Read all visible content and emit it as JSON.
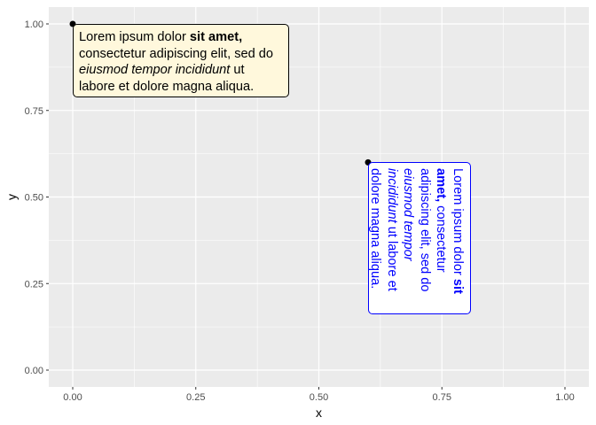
{
  "chart_data": {
    "type": "scatter",
    "xlabel": "x",
    "ylabel": "y",
    "xlim": [
      -0.05,
      1.05
    ],
    "ylim": [
      -0.05,
      1.05
    ],
    "x_ticks": [
      "0.00",
      "0.25",
      "0.50",
      "0.75",
      "1.00"
    ],
    "y_ticks": [
      "0.00",
      "0.25",
      "0.50",
      "0.75",
      "1.00"
    ],
    "grid": true,
    "points": [
      {
        "x": 0,
        "y": 1,
        "label_color": "#000000",
        "box_fill": "#FFF8DC",
        "box_border": "#000000",
        "rotation": 0
      },
      {
        "x": 0.6,
        "y": 0.6,
        "label_color": "#0000FF",
        "box_fill": "#FFFFFF",
        "box_border": "#0000FF",
        "rotation": -90
      }
    ],
    "label_runs": [
      {
        "text": "Lorem ipsum dolor ",
        "style": ""
      },
      {
        "text": "sit amet,",
        "style": "b"
      },
      {
        "text": " consectetur adipiscing elit, sed do ",
        "style": ""
      },
      {
        "text": "eiusmod tempor incididunt",
        "style": "i"
      },
      {
        "text": " ut labore et dolore magna aliqua.",
        "style": ""
      }
    ]
  },
  "colors": {
    "panel": "#EBEBEB",
    "grid": "#FFFFFF",
    "axis_text": "#4D4D4D"
  }
}
